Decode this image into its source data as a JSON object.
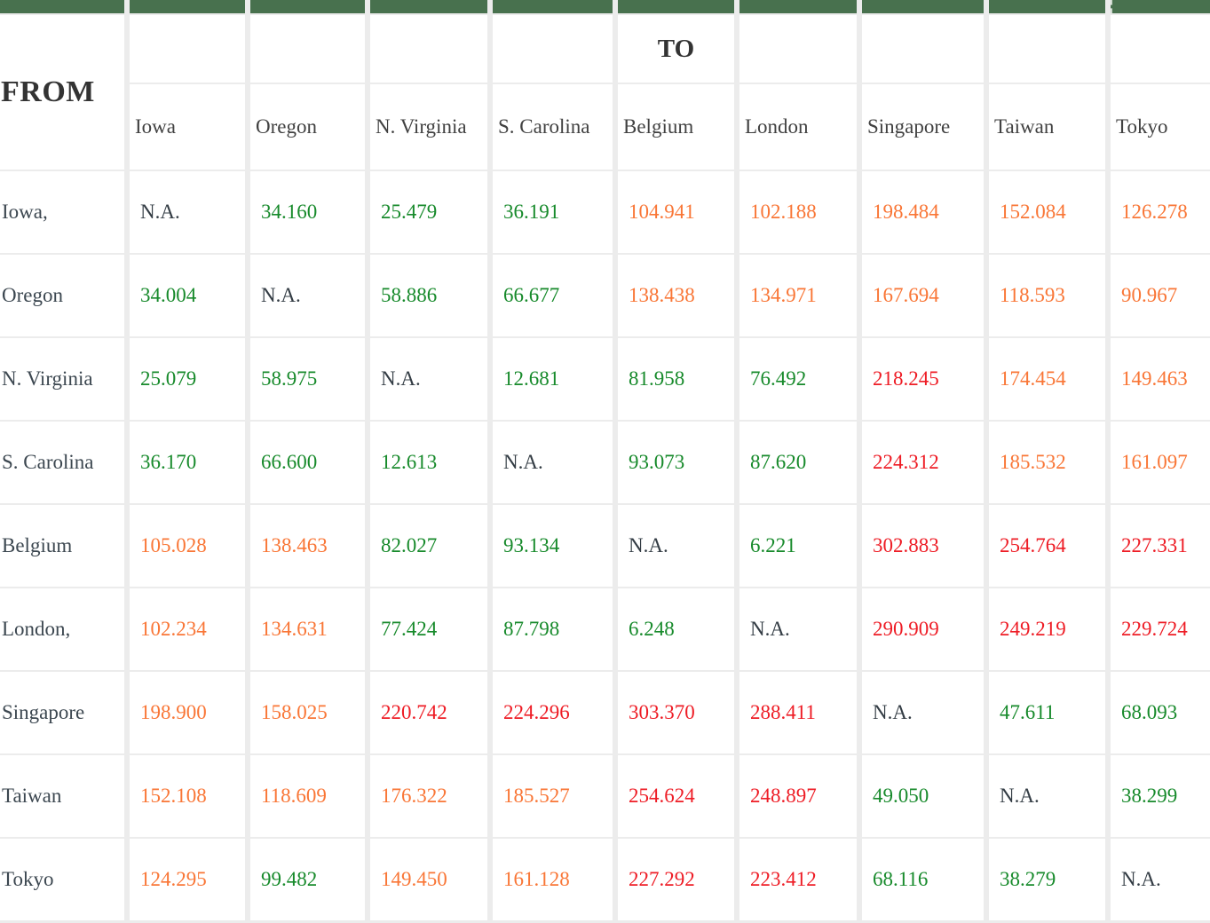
{
  "corner": {
    "from_label": "FROM",
    "to_label": "TO"
  },
  "na_label": "N.A.",
  "to_column": "Belgium",
  "colors": {
    "top_bar": "#48714e",
    "grid_bg": "#ececec",
    "value_low": "#178a2b",
    "value_medium": "#f97636",
    "value_high": "#ee1c25",
    "row_label": "#3c4750",
    "column_label": "#414141",
    "na_value": "#333c44",
    "corner_labels": "#333333"
  },
  "columns": [
    "Iowa",
    "Oregon",
    "N. Virginia",
    "S. Carolina",
    "Belgium",
    "London",
    "Singapore",
    "Taiwan",
    "Tokyo"
  ],
  "rows": [
    {
      "label": "Iowa,",
      "cells": [
        {
          "v": "N.A.",
          "c": "na"
        },
        {
          "v": "34.160",
          "c": "low"
        },
        {
          "v": "25.479",
          "c": "low"
        },
        {
          "v": "36.191",
          "c": "low"
        },
        {
          "v": "104.941",
          "c": "medium"
        },
        {
          "v": "102.188",
          "c": "medium"
        },
        {
          "v": "198.484",
          "c": "medium"
        },
        {
          "v": "152.084",
          "c": "medium"
        },
        {
          "v": "126.278",
          "c": "medium"
        }
      ]
    },
    {
      "label": "Oregon",
      "cells": [
        {
          "v": "34.004",
          "c": "low"
        },
        {
          "v": "N.A.",
          "c": "na"
        },
        {
          "v": "58.886",
          "c": "low"
        },
        {
          "v": "66.677",
          "c": "low"
        },
        {
          "v": "138.438",
          "c": "medium"
        },
        {
          "v": "134.971",
          "c": "medium"
        },
        {
          "v": "167.694",
          "c": "medium"
        },
        {
          "v": "118.593",
          "c": "medium"
        },
        {
          "v": "90.967",
          "c": "medium"
        }
      ]
    },
    {
      "label": "N. Virginia",
      "cells": [
        {
          "v": "25.079",
          "c": "low"
        },
        {
          "v": "58.975",
          "c": "low"
        },
        {
          "v": "N.A.",
          "c": "na"
        },
        {
          "v": "12.681",
          "c": "low"
        },
        {
          "v": "81.958",
          "c": "low"
        },
        {
          "v": "76.492",
          "c": "low"
        },
        {
          "v": "218.245",
          "c": "high"
        },
        {
          "v": "174.454",
          "c": "medium"
        },
        {
          "v": "149.463",
          "c": "medium"
        }
      ]
    },
    {
      "label": "S. Carolina",
      "cells": [
        {
          "v": "36.170",
          "c": "low"
        },
        {
          "v": "66.600",
          "c": "low"
        },
        {
          "v": "12.613",
          "c": "low"
        },
        {
          "v": "N.A.",
          "c": "na"
        },
        {
          "v": "93.073",
          "c": "low"
        },
        {
          "v": "87.620",
          "c": "low"
        },
        {
          "v": "224.312",
          "c": "high"
        },
        {
          "v": "185.532",
          "c": "medium"
        },
        {
          "v": "161.097",
          "c": "medium"
        }
      ]
    },
    {
      "label": "Belgium",
      "cells": [
        {
          "v": "105.028",
          "c": "medium"
        },
        {
          "v": "138.463",
          "c": "medium"
        },
        {
          "v": "82.027",
          "c": "low"
        },
        {
          "v": "93.134",
          "c": "low"
        },
        {
          "v": "N.A.",
          "c": "na"
        },
        {
          "v": "6.221",
          "c": "low"
        },
        {
          "v": "302.883",
          "c": "high"
        },
        {
          "v": "254.764",
          "c": "high"
        },
        {
          "v": "227.331",
          "c": "high"
        }
      ]
    },
    {
      "label": "London,",
      "cells": [
        {
          "v": "102.234",
          "c": "medium"
        },
        {
          "v": "134.631",
          "c": "medium"
        },
        {
          "v": "77.424",
          "c": "low"
        },
        {
          "v": "87.798",
          "c": "low"
        },
        {
          "v": "6.248",
          "c": "low"
        },
        {
          "v": "N.A.",
          "c": "na"
        },
        {
          "v": "290.909",
          "c": "high"
        },
        {
          "v": "249.219",
          "c": "high"
        },
        {
          "v": "229.724",
          "c": "high"
        }
      ]
    },
    {
      "label": "Singapore",
      "cells": [
        {
          "v": "198.900",
          "c": "medium"
        },
        {
          "v": "158.025",
          "c": "medium"
        },
        {
          "v": "220.742",
          "c": "high"
        },
        {
          "v": "224.296",
          "c": "high"
        },
        {
          "v": "303.370",
          "c": "high"
        },
        {
          "v": "288.411",
          "c": "high"
        },
        {
          "v": "N.A.",
          "c": "na"
        },
        {
          "v": "47.611",
          "c": "low"
        },
        {
          "v": "68.093",
          "c": "low"
        }
      ]
    },
    {
      "label": "Taiwan",
      "cells": [
        {
          "v": "152.108",
          "c": "medium"
        },
        {
          "v": "118.609",
          "c": "medium"
        },
        {
          "v": "176.322",
          "c": "medium"
        },
        {
          "v": "185.527",
          "c": "medium"
        },
        {
          "v": "254.624",
          "c": "high"
        },
        {
          "v": "248.897",
          "c": "high"
        },
        {
          "v": "49.050",
          "c": "low"
        },
        {
          "v": "N.A.",
          "c": "na"
        },
        {
          "v": "38.299",
          "c": "low"
        }
      ]
    },
    {
      "label": "Tokyo",
      "cells": [
        {
          "v": "124.295",
          "c": "medium"
        },
        {
          "v": "99.482",
          "c": "low"
        },
        {
          "v": "149.450",
          "c": "medium"
        },
        {
          "v": "161.128",
          "c": "medium"
        },
        {
          "v": "227.292",
          "c": "high"
        },
        {
          "v": "223.412",
          "c": "high"
        },
        {
          "v": "68.116",
          "c": "low"
        },
        {
          "v": "38.279",
          "c": "low"
        },
        {
          "v": "N.A.",
          "c": "na"
        }
      ]
    }
  ]
}
